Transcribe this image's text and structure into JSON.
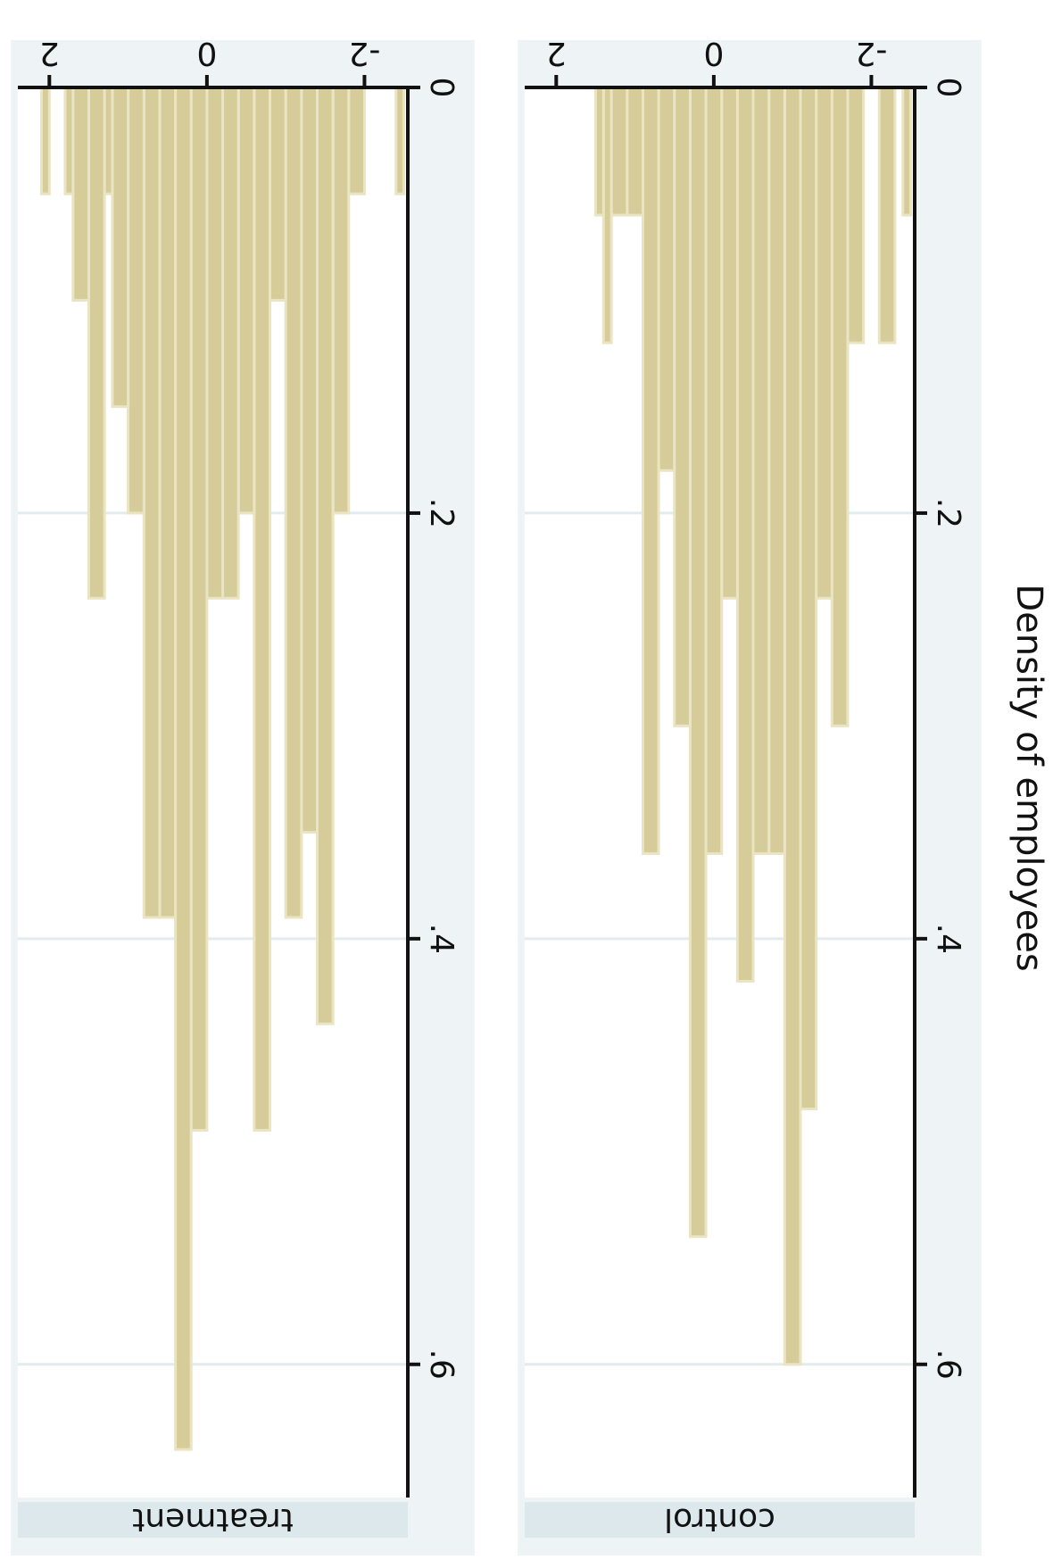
{
  "chart_data": [
    {
      "type": "bar",
      "panel": "treatment",
      "title": "treatment",
      "ylabel": "Density of employees",
      "xticks": [
        -2,
        0,
        2
      ],
      "yticks": [
        0,
        0.2,
        0.4,
        0.6
      ],
      "ytick_labels": [
        "0",
        ".2",
        ".4",
        ".6"
      ],
      "xtick_labels": [
        "-2",
        "0",
        "2"
      ],
      "xlim": [
        -2.55,
        2.4
      ],
      "ylim": [
        0,
        0.65
      ],
      "grid": true,
      "bar_color": "#d6cc9a",
      "bins": [
        {
          "x0": -2.5,
          "x1": -2.4,
          "value": 0.05
        },
        {
          "x0": -2.0,
          "x1": -1.8,
          "value": 0.05
        },
        {
          "x0": -1.8,
          "x1": -1.6,
          "value": 0.2
        },
        {
          "x0": -1.6,
          "x1": -1.4,
          "value": 0.44
        },
        {
          "x0": -1.4,
          "x1": -1.2,
          "value": 0.35
        },
        {
          "x0": -1.2,
          "x1": -1.0,
          "value": 0.39
        },
        {
          "x0": -1.0,
          "x1": -0.8,
          "value": 0.1
        },
        {
          "x0": -0.8,
          "x1": -0.6,
          "value": 0.49
        },
        {
          "x0": -0.6,
          "x1": -0.4,
          "value": 0.2
        },
        {
          "x0": -0.4,
          "x1": -0.2,
          "value": 0.24
        },
        {
          "x0": -0.2,
          "x1": 0.0,
          "value": 0.24
        },
        {
          "x0": 0.0,
          "x1": 0.2,
          "value": 0.49
        },
        {
          "x0": 0.2,
          "x1": 0.4,
          "value": 0.64
        },
        {
          "x0": 0.4,
          "x1": 0.6,
          "value": 0.39
        },
        {
          "x0": 0.6,
          "x1": 0.8,
          "value": 0.39
        },
        {
          "x0": 0.8,
          "x1": 1.0,
          "value": 0.2
        },
        {
          "x0": 1.0,
          "x1": 1.2,
          "value": 0.15
        },
        {
          "x0": 1.2,
          "x1": 1.3,
          "value": 0.05
        },
        {
          "x0": 1.3,
          "x1": 1.5,
          "value": 0.24
        },
        {
          "x0": 1.5,
          "x1": 1.7,
          "value": 0.1
        },
        {
          "x0": 1.7,
          "x1": 1.8,
          "value": 0.05
        },
        {
          "x0": 2.0,
          "x1": 2.1,
          "value": 0.05
        }
      ]
    },
    {
      "type": "bar",
      "panel": "control",
      "title": "control",
      "ylabel": "Density of employees",
      "xticks": [
        -2,
        0,
        2
      ],
      "yticks": [
        0,
        0.2,
        0.4,
        0.6
      ],
      "ytick_labels": [
        "0",
        ".2",
        ".4",
        ".6"
      ],
      "xtick_labels": [
        "-2",
        "0",
        "2"
      ],
      "xlim": [
        -2.55,
        2.4
      ],
      "ylim": [
        0,
        0.65
      ],
      "grid": true,
      "bar_color": "#d6cc9a",
      "bins": [
        {
          "x0": -2.5,
          "x1": -2.4,
          "value": 0.06
        },
        {
          "x0": -2.3,
          "x1": -2.1,
          "value": 0.12
        },
        {
          "x0": -1.9,
          "x1": -1.7,
          "value": 0.12
        },
        {
          "x0": -1.7,
          "x1": -1.5,
          "value": 0.3
        },
        {
          "x0": -1.5,
          "x1": -1.3,
          "value": 0.24
        },
        {
          "x0": -1.3,
          "x1": -1.1,
          "value": 0.48
        },
        {
          "x0": -1.1,
          "x1": -0.9,
          "value": 0.6
        },
        {
          "x0": -0.9,
          "x1": -0.7,
          "value": 0.36
        },
        {
          "x0": -0.7,
          "x1": -0.5,
          "value": 0.36
        },
        {
          "x0": -0.5,
          "x1": -0.3,
          "value": 0.42
        },
        {
          "x0": -0.3,
          "x1": -0.1,
          "value": 0.24
        },
        {
          "x0": -0.1,
          "x1": 0.1,
          "value": 0.36
        },
        {
          "x0": 0.1,
          "x1": 0.3,
          "value": 0.54
        },
        {
          "x0": 0.3,
          "x1": 0.5,
          "value": 0.3
        },
        {
          "x0": 0.5,
          "x1": 0.7,
          "value": 0.18
        },
        {
          "x0": 0.7,
          "x1": 0.9,
          "value": 0.36
        },
        {
          "x0": 0.9,
          "x1": 1.1,
          "value": 0.06
        },
        {
          "x0": 1.1,
          "x1": 1.3,
          "value": 0.06
        },
        {
          "x0": 1.3,
          "x1": 1.4,
          "value": 0.12
        },
        {
          "x0": 1.4,
          "x1": 1.5,
          "value": 0.06
        }
      ]
    }
  ]
}
